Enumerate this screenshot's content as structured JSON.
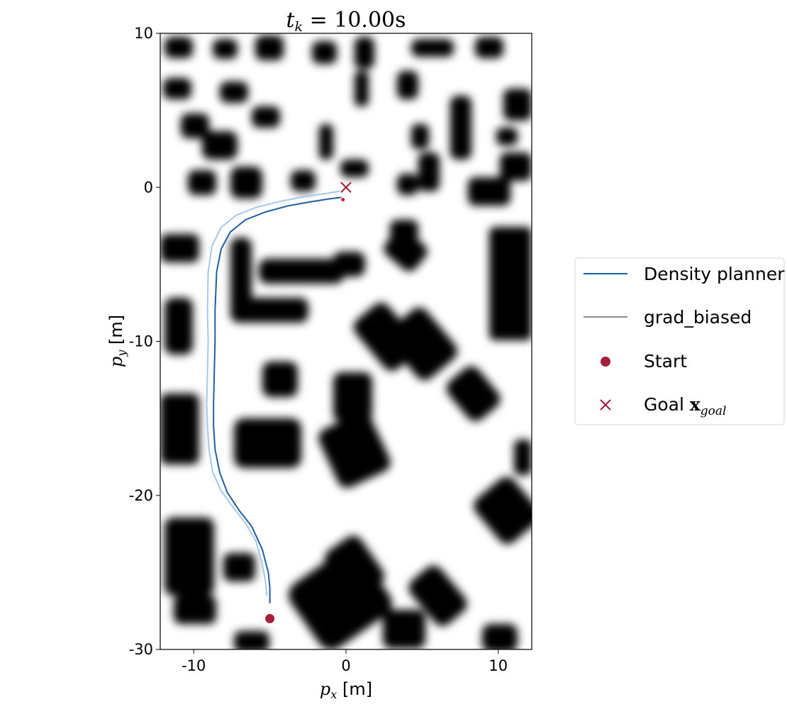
{
  "chart_data": {
    "type": "line",
    "title": "t_k = 10.00s",
    "title_main": "t",
    "title_sub": "k",
    "title_rest": " = 10.00s",
    "xlabel_symbol": "p",
    "xlabel_sub": "x",
    "xlabel_unit": " [m]",
    "ylabel_symbol": "p",
    "ylabel_sub": "y",
    "ylabel_unit": " [m]",
    "xlim": [
      -12.2,
      12.2
    ],
    "ylim": [
      -30,
      10
    ],
    "xticks": [
      {
        "value": -10,
        "label": "-10"
      },
      {
        "value": 0,
        "label": "0"
      },
      {
        "value": 10,
        "label": "10"
      }
    ],
    "yticks": [
      {
        "value": 10,
        "label": "10"
      },
      {
        "value": 0,
        "label": "0"
      },
      {
        "value": -10,
        "label": "-10"
      },
      {
        "value": -20,
        "label": "-20"
      },
      {
        "value": -30,
        "label": "-30"
      }
    ],
    "grid": false,
    "legend_position": "outside-right",
    "background": "occupancy density map (dark = obstacle)",
    "series": [
      {
        "name": "Density planner",
        "color": "#1f5fa0",
        "x": [
          -5.0,
          -5.0,
          -5.1,
          -5.5,
          -6.2,
          -7.0,
          -7.8,
          -8.3,
          -8.6,
          -8.7,
          -8.7,
          -8.65,
          -8.6,
          -8.6,
          -8.5,
          -8.2,
          -7.6,
          -6.6,
          -5.3,
          -3.8,
          -2.4,
          -1.1,
          -0.3
        ],
        "y": [
          -27.0,
          -26.0,
          -25.0,
          -23.5,
          -22.0,
          -21.0,
          -19.8,
          -18.5,
          -17.0,
          -15.5,
          -14.0,
          -12.0,
          -10.0,
          -8.0,
          -5.5,
          -4.0,
          -2.9,
          -2.1,
          -1.6,
          -1.2,
          -0.95,
          -0.75,
          -0.65
        ]
      },
      {
        "name": "grad_biased",
        "color": "#a8c8e8",
        "legend_color": "#8a8a8a",
        "x": [
          -5.2,
          -5.3,
          -5.5,
          -5.9,
          -6.6,
          -7.4,
          -8.2,
          -8.75,
          -9.0,
          -9.1,
          -9.15,
          -9.1,
          -9.05,
          -9.1,
          -9.05,
          -8.8,
          -8.2,
          -7.2,
          -5.9,
          -4.3,
          -2.7,
          -1.3,
          -0.4
        ],
        "y": [
          -26.5,
          -25.5,
          -24.5,
          -23.0,
          -21.8,
          -20.8,
          -19.7,
          -18.5,
          -17.0,
          -15.5,
          -14.0,
          -12.0,
          -10.0,
          -8.0,
          -5.5,
          -3.8,
          -2.6,
          -1.8,
          -1.3,
          -0.9,
          -0.6,
          -0.4,
          -0.25
        ]
      }
    ],
    "start": {
      "name": "Start",
      "x": -5.0,
      "y": -28.0,
      "color": "#a2203a"
    },
    "current": {
      "x": -0.2,
      "y": -0.8,
      "color": "#d0202a"
    },
    "goal": {
      "name": "Goal",
      "name_symbol": "x",
      "name_sub": "goal",
      "x": 0.0,
      "y": 0.0,
      "color": "#a2203a"
    }
  }
}
